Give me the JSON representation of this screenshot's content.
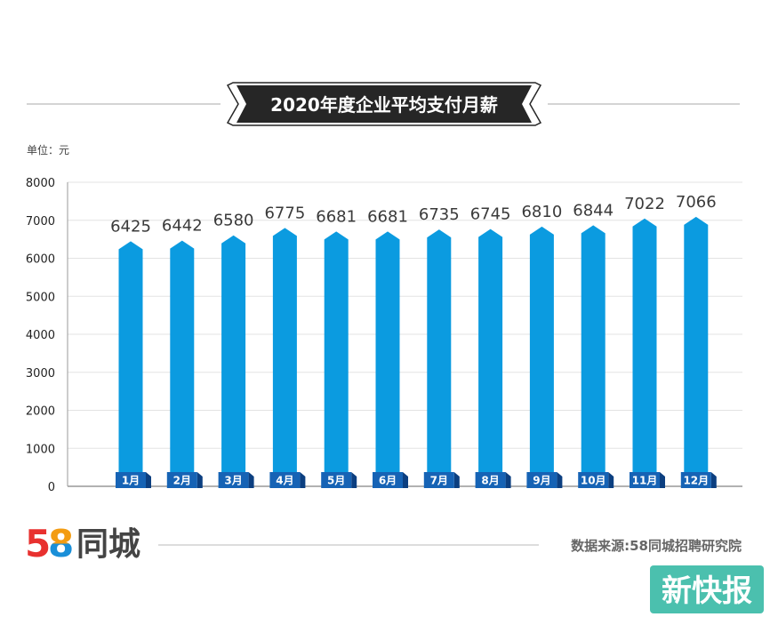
{
  "chart_data": {
    "type": "bar",
    "title": "2020年度企业平均支付月薪",
    "unit_label": "单位：元",
    "categories": [
      "1月",
      "2月",
      "3月",
      "4月",
      "5月",
      "6月",
      "7月",
      "8月",
      "9月",
      "10月",
      "11月",
      "12月"
    ],
    "values": [
      6425,
      6442,
      6580,
      6775,
      6681,
      6681,
      6735,
      6745,
      6810,
      6844,
      7022,
      7066
    ],
    "value_labels": [
      "6425",
      "6442",
      "6580",
      "6775",
      "6681",
      "6681",
      "6735",
      "6745",
      "6810",
      "6844",
      "7022",
      "7066"
    ],
    "y_ticks": [
      "0",
      "1000",
      "2000",
      "3000",
      "4000",
      "5000",
      "6000",
      "7000",
      "8000"
    ],
    "ylim": [
      0,
      8000
    ],
    "grid": true,
    "bar_color": "#0b9be0",
    "label_box_color": "#1663b5"
  },
  "footer": {
    "logo_number_5": "5",
    "logo_number_8": "8",
    "logo_text": "同城",
    "source": "数据来源:58同城招聘研究院"
  },
  "watermark": {
    "text": "新快报"
  },
  "colors": {
    "title_bg": "#262626",
    "axis_line": "#999999",
    "gridline": "#e3e3e3",
    "stamp_bg": "#2cb5a0",
    "logo_5": "#e8312f",
    "logo_8_orange": "#f39c12",
    "logo_8_blue": "#1a8fd8"
  }
}
